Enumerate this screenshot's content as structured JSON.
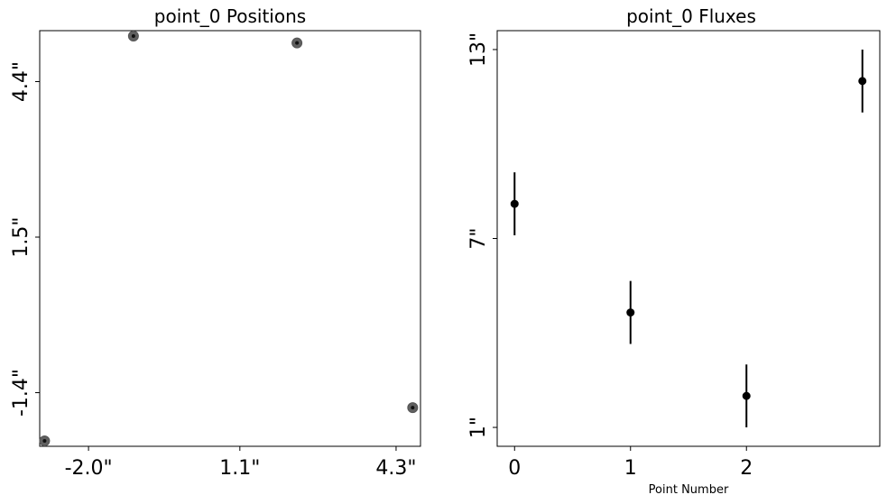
{
  "chart_data": [
    {
      "type": "scatter",
      "title": "point_0 Positions",
      "xlabel": "",
      "ylabel": "",
      "x_tick_labels": [
        "-2.0\"",
        "1.1\"",
        "4.3\""
      ],
      "x_tick_values": [
        -2.0,
        1.1,
        4.3
      ],
      "y_tick_labels": [
        "4.4\"",
        "1.5\"",
        "-1.4\""
      ],
      "y_tick_values": [
        4.4,
        1.5,
        -1.4
      ],
      "xlim": [
        -3.0,
        4.8
      ],
      "ylim": [
        -2.4,
        5.35
      ],
      "points": [
        {
          "x": -2.9,
          "y": -2.3
        },
        {
          "x": -1.08,
          "y": 5.25
        },
        {
          "x": 2.27,
          "y": 5.12
        },
        {
          "x": 4.64,
          "y": -1.68
        }
      ],
      "grid": false,
      "marker_color": "#444444"
    },
    {
      "type": "scatter",
      "title": "point_0 Fluxes",
      "xlabel": "Point Number",
      "ylabel": "",
      "x_tick_labels": [
        "0",
        "1",
        "2"
      ],
      "x_tick_values": [
        0,
        1,
        2
      ],
      "y_tick_labels": [
        "13\"",
        "7\"",
        "1\""
      ],
      "y_tick_values": [
        13,
        7,
        1
      ],
      "xlim": [
        -0.15,
        3.15
      ],
      "ylim": [
        0.4,
        13.6
      ],
      "points": [
        {
          "x": 0,
          "y": 8.1,
          "yerr": 1.0
        },
        {
          "x": 1,
          "y": 4.65,
          "yerr": 1.0
        },
        {
          "x": 2,
          "y": 2.0,
          "yerr": 1.0
        },
        {
          "x": 3,
          "y": 12.0,
          "yerr": 1.0
        }
      ],
      "grid": false,
      "marker_color": "#000000"
    }
  ]
}
